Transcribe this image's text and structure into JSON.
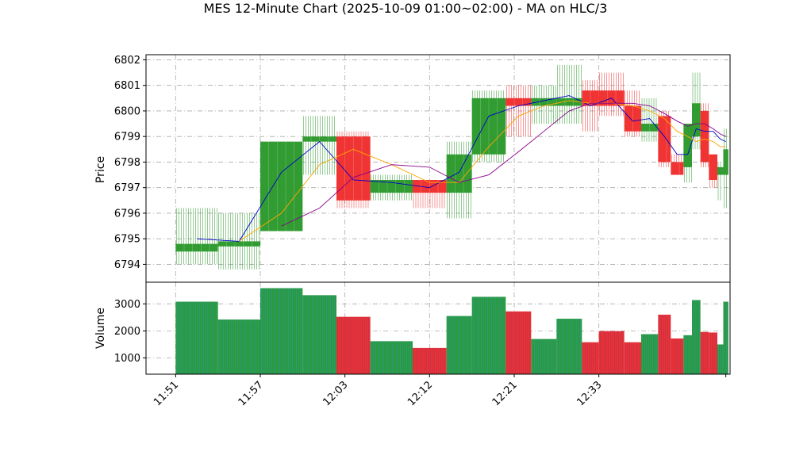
{
  "chart_data": {
    "type": "candlestick",
    "title": "MES 12-Minute Chart (2025-10-09 01:00~02:00) - MA on HLC/3",
    "colors": {
      "up": "#2e9a2e",
      "down": "#f03030",
      "ma_fast": "#0000cc",
      "ma_mid": "#ffa500",
      "ma_slow": "#8b008b",
      "grid": "#aaaaaa",
      "volume_edge_up": "#1f9bd0",
      "volume_edge_down": "#9b3a6a"
    },
    "price_panel": {
      "ylabel": "Price",
      "ylim": [
        6793.3,
        6802.2
      ],
      "yticks": [
        6794,
        6795,
        6796,
        6797,
        6798,
        6799,
        6800,
        6801,
        6802
      ],
      "grid": true
    },
    "volume_panel": {
      "ylabel": "Volume",
      "ylim": [
        400,
        3800
      ],
      "yticks": [
        1000,
        2000,
        3000
      ],
      "grid": true
    },
    "x_axis": {
      "xlim": [
        -3.5,
        65.5
      ],
      "ticks": [
        {
          "x": 0,
          "label": "11:51"
        },
        {
          "x": 10,
          "label": "11:57"
        },
        {
          "x": 20,
          "label": "12:03"
        },
        {
          "x": 30,
          "label": "12:12"
        },
        {
          "x": 40,
          "label": "12:21"
        },
        {
          "x": 50,
          "label": "12:33"
        },
        {
          "x": 65,
          "label": ""
        }
      ]
    },
    "bars": [
      {
        "x0": 0,
        "x1": 5,
        "open": 6794.5,
        "high": 6796.2,
        "low": 6794.0,
        "close": 6794.8,
        "volume": 3080
      },
      {
        "x0": 5,
        "x1": 10,
        "open": 6794.7,
        "high": 6796.0,
        "low": 6793.8,
        "close": 6794.9,
        "volume": 2420
      },
      {
        "x0": 10,
        "x1": 15,
        "open": 6795.3,
        "high": 6798.8,
        "low": 6795.3,
        "close": 6798.8,
        "volume": 3580
      },
      {
        "x0": 15,
        "x1": 19,
        "open": 6798.8,
        "high": 6799.8,
        "low": 6797.5,
        "close": 6799.0,
        "volume": 3320
      },
      {
        "x0": 19,
        "x1": 23,
        "open": 6799.0,
        "high": 6799.2,
        "low": 6796.2,
        "close": 6796.5,
        "volume": 2520
      },
      {
        "x0": 23,
        "x1": 28,
        "open": 6796.8,
        "high": 6797.5,
        "low": 6796.5,
        "close": 6797.3,
        "volume": 1620
      },
      {
        "x0": 28,
        "x1": 32,
        "open": 6797.3,
        "high": 6797.3,
        "low": 6796.2,
        "close": 6796.8,
        "volume": 1370
      },
      {
        "x0": 32,
        "x1": 35,
        "open": 6796.8,
        "high": 6798.8,
        "low": 6795.8,
        "close": 6798.3,
        "volume": 2550
      },
      {
        "x0": 35,
        "x1": 39,
        "open": 6798.3,
        "high": 6800.8,
        "low": 6798.0,
        "close": 6800.5,
        "volume": 3260
      },
      {
        "x0": 39,
        "x1": 42,
        "open": 6800.5,
        "high": 6801.0,
        "low": 6799.0,
        "close": 6800.2,
        "volume": 2720
      },
      {
        "x0": 42,
        "x1": 45,
        "open": 6800.2,
        "high": 6801.0,
        "low": 6799.5,
        "close": 6800.5,
        "volume": 1700
      },
      {
        "x0": 45,
        "x1": 48,
        "open": 6800.2,
        "high": 6801.8,
        "low": 6799.5,
        "close": 6800.5,
        "volume": 2450
      },
      {
        "x0": 48,
        "x1": 50,
        "open": 6800.8,
        "high": 6801.2,
        "low": 6799.2,
        "close": 6800.2,
        "volume": 1580
      },
      {
        "x0": 50,
        "x1": 53,
        "open": 6800.8,
        "high": 6801.5,
        "low": 6799.8,
        "close": 6800.2,
        "volume": 1990
      },
      {
        "x0": 53,
        "x1": 55,
        "open": 6800.2,
        "high": 6800.8,
        "low": 6799.0,
        "close": 6799.2,
        "volume": 1580
      },
      {
        "x0": 55,
        "x1": 57,
        "open": 6799.2,
        "high": 6800.5,
        "low": 6798.8,
        "close": 6799.5,
        "volume": 1880
      },
      {
        "x0": 57,
        "x1": 58.5,
        "open": 6799.8,
        "high": 6800.0,
        "low": 6797.8,
        "close": 6798.0,
        "volume": 2600
      },
      {
        "x0": 58.5,
        "x1": 60,
        "open": 6798.0,
        "high": 6798.3,
        "low": 6797.5,
        "close": 6797.5,
        "volume": 1720
      },
      {
        "x0": 60,
        "x1": 61,
        "open": 6797.8,
        "high": 6799.5,
        "low": 6797.2,
        "close": 6799.5,
        "volume": 1840
      },
      {
        "x0": 61,
        "x1": 62,
        "open": 6799.0,
        "high": 6801.5,
        "low": 6798.5,
        "close": 6800.3,
        "volume": 3140
      },
      {
        "x0": 62,
        "x1": 63,
        "open": 6800.0,
        "high": 6800.3,
        "low": 6797.8,
        "close": 6798.0,
        "volume": 1960
      },
      {
        "x0": 63,
        "x1": 64,
        "open": 6798.3,
        "high": 6798.3,
        "low": 6797.0,
        "close": 6797.3,
        "volume": 1940
      },
      {
        "x0": 64,
        "x1": 64.7,
        "open": 6797.5,
        "high": 6798.0,
        "low": 6796.5,
        "close": 6797.8,
        "volume": 1500
      },
      {
        "x0": 64.7,
        "x1": 65.3,
        "open": 6797.5,
        "high": 6799.3,
        "low": 6796.2,
        "close": 6798.5,
        "volume": 3080
      }
    ],
    "ma_lines": [
      {
        "color_key": "ma_fast",
        "points": [
          [
            2.5,
            6795.0
          ],
          [
            7.5,
            6794.9
          ],
          [
            12.5,
            6797.6
          ],
          [
            17,
            6798.8
          ],
          [
            21,
            6797.3
          ],
          [
            25.5,
            6797.2
          ],
          [
            30,
            6797.0
          ],
          [
            33.5,
            6797.6
          ],
          [
            37,
            6799.8
          ],
          [
            40.5,
            6800.2
          ],
          [
            43.5,
            6800.4
          ],
          [
            46.5,
            6800.6
          ],
          [
            49,
            6800.2
          ],
          [
            51.5,
            6800.5
          ],
          [
            54,
            6799.6
          ],
          [
            56,
            6799.7
          ],
          [
            57.75,
            6799.0
          ],
          [
            59.25,
            6798.3
          ],
          [
            60.5,
            6798.3
          ],
          [
            61.5,
            6799.3
          ],
          [
            62.5,
            6799.2
          ],
          [
            63.5,
            6799.2
          ],
          [
            64.35,
            6798.9
          ],
          [
            65,
            6798.8
          ]
        ]
      },
      {
        "color_key": "ma_mid",
        "points": [
          [
            7.5,
            6794.9
          ],
          [
            12.5,
            6796.0
          ],
          [
            17,
            6797.9
          ],
          [
            21,
            6798.5
          ],
          [
            25.5,
            6797.9
          ],
          [
            30,
            6797.2
          ],
          [
            33.5,
            6797.2
          ],
          [
            37,
            6798.6
          ],
          [
            40.5,
            6799.8
          ],
          [
            43.5,
            6800.2
          ],
          [
            46.5,
            6800.4
          ],
          [
            49,
            6800.3
          ],
          [
            51.5,
            6800.3
          ],
          [
            54,
            6800.2
          ],
          [
            56,
            6800.0
          ],
          [
            57.75,
            6799.7
          ],
          [
            59.25,
            6799.2
          ],
          [
            60.5,
            6799.0
          ],
          [
            61.5,
            6798.8
          ],
          [
            62.5,
            6798.9
          ],
          [
            63.5,
            6798.8
          ],
          [
            64.35,
            6798.6
          ],
          [
            65,
            6798.6
          ]
        ]
      },
      {
        "color_key": "ma_slow",
        "points": [
          [
            12.5,
            6795.5
          ],
          [
            17,
            6796.2
          ],
          [
            21,
            6797.4
          ],
          [
            25.5,
            6797.9
          ],
          [
            30,
            6797.8
          ],
          [
            33.5,
            6797.2
          ],
          [
            37,
            6797.5
          ],
          [
            40.5,
            6798.4
          ],
          [
            43.5,
            6799.2
          ],
          [
            46.5,
            6800.0
          ],
          [
            49,
            6800.3
          ],
          [
            51.5,
            6800.3
          ],
          [
            54,
            6800.3
          ],
          [
            56,
            6800.2
          ],
          [
            57.75,
            6799.9
          ],
          [
            59.25,
            6799.6
          ],
          [
            60.5,
            6799.4
          ],
          [
            61.5,
            6799.5
          ],
          [
            62.5,
            6799.5
          ],
          [
            63.5,
            6799.3
          ],
          [
            64.35,
            6799.1
          ],
          [
            65,
            6799.0
          ]
        ]
      }
    ]
  }
}
